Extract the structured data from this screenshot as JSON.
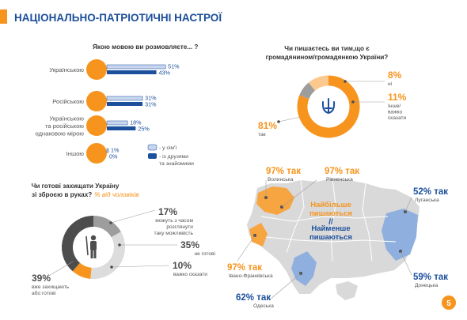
{
  "title": "НАЦІОНАЛЬНО-ПАТРІОТИЧНІ НАСТРОЇ",
  "page_number": "5",
  "colors": {
    "orange": "#f7941d",
    "dark_blue": "#1c4f9c",
    "light_blue": "#c7d6ee",
    "light_orange": "#fbc98e",
    "dark_gray": "#4d4d4d",
    "gray": "#9d9d9d",
    "map_gray": "#d9d9d9",
    "map_orange": "#f7a540",
    "map_blue": "#8fb0de"
  },
  "chart_data": [
    {
      "type": "bar",
      "title": "Якою мовою ви розмовляєте... ?",
      "categories": [
        "Українською",
        "Російською",
        "Українською та російською однаковою мірою",
        "Іншою"
      ],
      "series": [
        {
          "name": "- у сім'ї",
          "values": [
            51,
            31,
            18,
            1
          ],
          "labels": [
            "51%",
            "31%",
            "18%",
            "1%"
          ]
        },
        {
          "name": "- із друзями та знайомими",
          "values": [
            43,
            31,
            25,
            0
          ],
          "labels": [
            "43%",
            "31%",
            "25%",
            "0%"
          ]
        }
      ],
      "legend": "bottom-right"
    },
    {
      "type": "pie",
      "title": "Чи пишаєтесь ви тим,що є громадянином/громадянкою України?",
      "slices": [
        {
          "label": "так",
          "value": 81,
          "value_label": "81%"
        },
        {
          "label": "ні",
          "value": 8,
          "value_label": "8%"
        },
        {
          "label": "Інше/ важко сказати",
          "value": 11,
          "value_label": "11%"
        }
      ]
    },
    {
      "type": "pie",
      "title": "Чи готові захищати Україну зі зброєю в руках?",
      "subtitle": "% від чоловіків",
      "slices": [
        {
          "label": "вже захищають або готові",
          "value": 39,
          "value_label": "39%"
        },
        {
          "label": "можуть з часом розглянути таку можливість",
          "value": 17,
          "value_label": "17%"
        },
        {
          "label": "не готові",
          "value": 35,
          "value_label": "35%"
        },
        {
          "label": "важко сказати",
          "value": 10,
          "value_label": "10%"
        }
      ]
    }
  ],
  "map": {
    "title_most": "Найбільше пишаються",
    "title_least": "Найменше пишаються",
    "regions": [
      {
        "name": "Волинська",
        "value": "97% так"
      },
      {
        "name": "Рівненська",
        "value": "97% так"
      },
      {
        "name": "Луганська",
        "value": "52% так"
      },
      {
        "name": "Донецька",
        "value": "59% так"
      },
      {
        "name": "Івано-Франківська",
        "value": "97% так"
      },
      {
        "name": "Одеська",
        "value": "62% так"
      }
    ]
  }
}
